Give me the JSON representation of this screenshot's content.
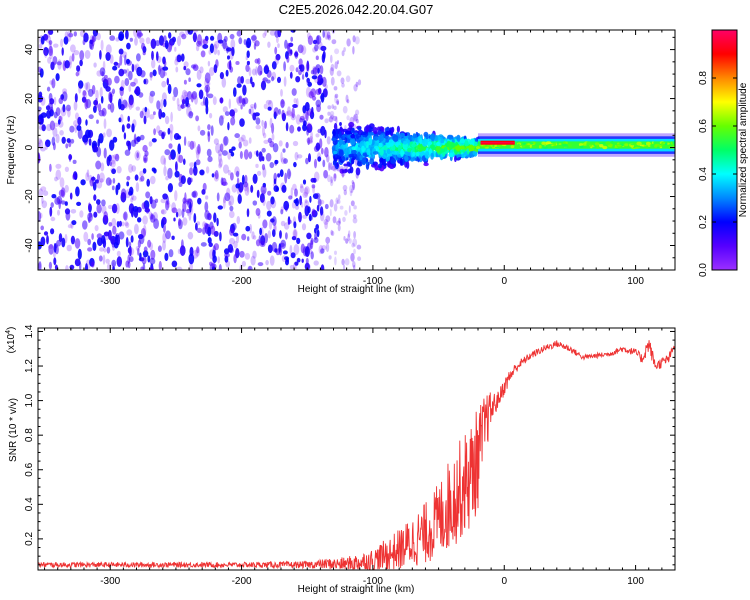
{
  "title": "C2E5.2026.042.20.04.G07",
  "colors": {
    "snr_line": "#ee3333",
    "frame": "#000000",
    "colorbar_stops": [
      "#9b30ff",
      "#5500ff",
      "#0000ff",
      "#0088ff",
      "#00ffff",
      "#00ff66",
      "#66ff00",
      "#ffff00",
      "#ff8800",
      "#ff0000",
      "#ff0066"
    ]
  },
  "chart_data": [
    {
      "type": "heatmap",
      "name": "spectrogram",
      "title": "C2E5.2026.042.20.04.G07",
      "xlabel": "Height of straight line (km)",
      "ylabel": "Frequency (Hz)",
      "xlim": [
        -355,
        130
      ],
      "ylim": [
        -50,
        48
      ],
      "x_ticks": [
        -300,
        -200,
        -100,
        0,
        100
      ],
      "x_tick_labels": [
        "-300",
        "-200",
        "-100",
        "0",
        "100"
      ],
      "y_ticks": [
        -40,
        -20,
        0,
        20,
        40
      ],
      "y_tick_labels": [
        "-40",
        "-20",
        "0",
        "20",
        "40"
      ],
      "regions": [
        {
          "label": "noise",
          "x_range": [
            -355,
            -135
          ],
          "freq_range": [
            -50,
            48
          ],
          "amplitude": 0.2
        },
        {
          "label": "fading noise",
          "x_range": [
            -135,
            -110
          ],
          "freq_range": [
            -50,
            48
          ],
          "amplitude": 0.1
        },
        {
          "label": "transition",
          "x_range": [
            -130,
            -20
          ],
          "freq_center": 0,
          "freq_halfwidth": [
            12,
            4
          ],
          "amplitude": 0.45
        },
        {
          "label": "carrier",
          "x_range": [
            -20,
            130
          ],
          "freq_center": 1,
          "freq_halfwidth": 3,
          "amplitude": 0.55
        }
      ],
      "carrier_peak": {
        "x_range": [
          -18,
          8
        ],
        "freq": 2,
        "amplitude": 0.9
      },
      "colorbar": {
        "label": "Normalized spectral amplitude",
        "range": [
          0.0,
          1.0
        ],
        "ticks": [
          0.0,
          0.2,
          0.4,
          0.6,
          0.8
        ],
        "tick_labels": [
          "0.0",
          "0.2",
          "0.4",
          "0.6",
          "0.8"
        ]
      }
    },
    {
      "type": "line",
      "name": "snr",
      "xlabel": "Height of straight line (km)",
      "ylabel": "SNR (10 * v/v)",
      "scale_label": "(x10",
      "scale_exponent": "4",
      "scale_close": ")",
      "xlim": [
        -355,
        130
      ],
      "ylim": [
        0.02,
        1.42
      ],
      "x_ticks": [
        -300,
        -200,
        -100,
        0,
        100
      ],
      "x_tick_labels": [
        "-300",
        "-200",
        "-100",
        "0",
        "100"
      ],
      "y_ticks": [
        0.2,
        0.4,
        0.6,
        0.8,
        1.0,
        1.2,
        1.4
      ],
      "y_tick_labels": [
        "0.2",
        "0.4",
        "0.6",
        "0.8",
        "1.0",
        "1.2",
        "1.4"
      ],
      "series": [
        {
          "name": "SNR",
          "x": [
            -355,
            -300,
            -250,
            -200,
            -150,
            -120,
            -100,
            -80,
            -60,
            -50,
            -40,
            -30,
            -25,
            -20,
            -15,
            -10,
            -5,
            0,
            5,
            10,
            20,
            30,
            40,
            50,
            60,
            70,
            80,
            90,
            100,
            105,
            110,
            115,
            120,
            125,
            130
          ],
          "y": [
            0.05,
            0.05,
            0.05,
            0.05,
            0.05,
            0.06,
            0.08,
            0.15,
            0.25,
            0.33,
            0.45,
            0.55,
            0.6,
            0.7,
            0.85,
            0.95,
            1.0,
            1.08,
            1.15,
            1.2,
            1.26,
            1.3,
            1.33,
            1.3,
            1.25,
            1.26,
            1.27,
            1.3,
            1.28,
            1.24,
            1.33,
            1.2,
            1.22,
            1.24,
            1.32
          ],
          "noise_amplitude": [
            0.015,
            0.015,
            0.015,
            0.015,
            0.02,
            0.04,
            0.07,
            0.12,
            0.18,
            0.22,
            0.28,
            0.3,
            0.32,
            0.3,
            0.2,
            0.1,
            0.05,
            0.05,
            0.04,
            0.03,
            0.02,
            0.02,
            0.02,
            0.02,
            0.015,
            0.015,
            0.015,
            0.02,
            0.02,
            0.03,
            0.05,
            0.03,
            0.03,
            0.03,
            0.02
          ]
        }
      ]
    }
  ]
}
